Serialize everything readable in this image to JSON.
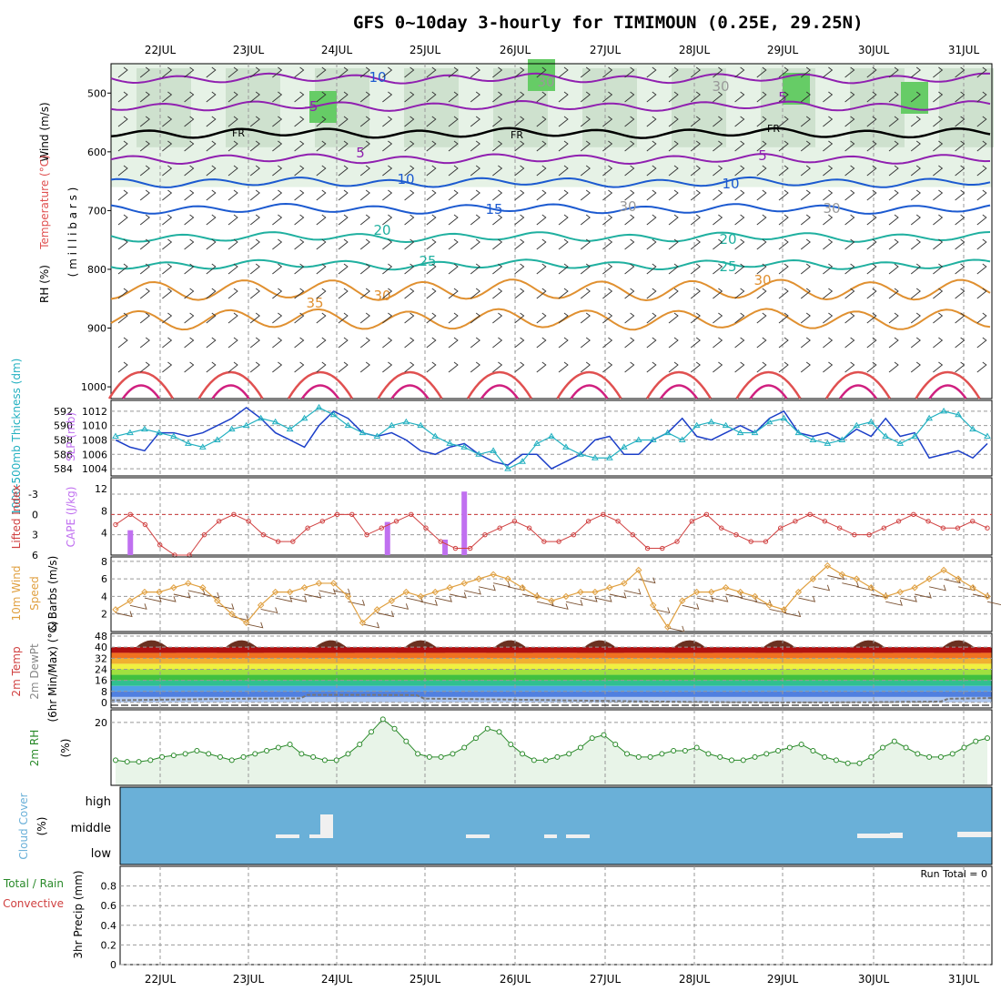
{
  "title": "GFS 0~10day 3-hourly for TIMIMOUN (0.25E, 29.25N)",
  "dates": [
    "22JUL",
    "23JUL",
    "24JUL",
    "25JUL",
    "26JUL",
    "27JUL",
    "28JUL",
    "29JUL",
    "30JUL",
    "31JUL"
  ],
  "colors": {
    "blue": "#1c3fc8",
    "cyan": "#22b0c0",
    "red": "#d04040",
    "purple": "#c070f0",
    "orange": "#e0a040",
    "green": "#2a8a2a",
    "cloud": "#6ab0d8",
    "grey": "#888888"
  },
  "chart_data": [
    {
      "type": "line",
      "name": "upper-air cross section",
      "ylabel_parts": [
        "Wind (m/s)",
        "Temperature (°C)",
        "RH (%)"
      ],
      "yunit": "( m i l l i b a r s )",
      "y_ticks": [
        "500",
        "600",
        "700",
        "800",
        "900",
        "1000"
      ],
      "ylim": [
        450,
        1020
      ],
      "y_inverted": true,
      "contour_labels": [
        "10",
        "-5",
        "5",
        "FR",
        "FR",
        "FR",
        "5",
        "5",
        "10",
        "10",
        "15",
        "20",
        "20",
        "25",
        "25",
        "30",
        "30",
        "35",
        "30",
        "30",
        "30",
        "30"
      ],
      "isotherms": [
        {
          "value": -10,
          "level": 475
        },
        {
          "value": -5,
          "level": 522
        },
        {
          "value": 0,
          "level": 568
        },
        {
          "value": 5,
          "level": 612
        },
        {
          "value": 10,
          "level": 652
        },
        {
          "value": 15,
          "level": 697
        },
        {
          "value": 20,
          "level": 745
        },
        {
          "value": 25,
          "level": 792
        },
        {
          "value": 30,
          "level": 835
        },
        {
          "value": 35,
          "level": 885
        }
      ]
    },
    {
      "type": "line",
      "ylabel_left": "1000-500mb Thickness (dm)",
      "ylabel_right": "SLP (mb)",
      "y_ticks_left": [
        "592",
        "590",
        "588",
        "586",
        "584"
      ],
      "y_ticks_right": [
        "1012",
        "1010",
        "1008",
        "1006",
        "1004"
      ],
      "ylim_slp": [
        1003,
        1013.5
      ],
      "slp": [
        1008,
        1007,
        1006.5,
        1009,
        1009,
        1008.5,
        1009,
        1010,
        1011,
        1012.5,
        1011,
        1009,
        1008,
        1007,
        1010,
        1012,
        1011,
        1009,
        1008.5,
        1009,
        1008,
        1006.5,
        1006,
        1007,
        1007.5,
        1006,
        1005,
        1004.5,
        1006,
        1006,
        1004,
        1005,
        1006,
        1008,
        1008.5,
        1006,
        1006,
        1008,
        1009,
        1011,
        1008.5,
        1008,
        1009,
        1010,
        1009,
        1011,
        1012,
        1009,
        1008.5,
        1009,
        1008,
        1009.5,
        1008.5,
        1011,
        1008.5,
        1009,
        1005.5,
        1006,
        1006.5,
        1005.5,
        1007.5
      ],
      "thickness_as_slp": [
        1008.5,
        1009,
        1009.5,
        1009,
        1008.5,
        1007.5,
        1007,
        1008,
        1009.5,
        1010,
        1011,
        1010.5,
        1009.5,
        1011,
        1012.5,
        1011.5,
        1010,
        1009,
        1008.5,
        1010,
        1010.5,
        1010,
        1008.5,
        1007.5,
        1007,
        1006,
        1006.5,
        1004,
        1005,
        1007.5,
        1008.5,
        1007,
        1006,
        1005.5,
        1005.5,
        1007,
        1008,
        1008,
        1009,
        1008,
        1010,
        1010.5,
        1010,
        1009,
        1009,
        1010.5,
        1011,
        1009,
        1008,
        1007.5,
        1008,
        1010,
        1010.5,
        1008.5,
        1007.5,
        1008.5,
        1011,
        1012,
        1011.5,
        1009.5,
        1008.5
      ]
    },
    {
      "type": "bar",
      "ylabel_left": "Lifted Index",
      "ylabel_right": "CAPE (J/kg)",
      "y_ticks_left": [
        "-3",
        "0",
        "3",
        "6"
      ],
      "y_ticks_right": [
        "12",
        "8",
        "4"
      ],
      "cape_bars": [
        {
          "x": 1.0,
          "value": 4.5
        },
        {
          "x": 18.4,
          "value": 6
        },
        {
          "x": 22.3,
          "value": 2.8
        },
        {
          "x": 23.6,
          "value": 11.5
        }
      ],
      "lifted_index": [
        1.5,
        0,
        1.5,
        4.5,
        6,
        6,
        3,
        1,
        0,
        1,
        3,
        4,
        4,
        2,
        1,
        0,
        0,
        3,
        2,
        1,
        0,
        2,
        4,
        5,
        5,
        3,
        2,
        1,
        2,
        4,
        4,
        3,
        1,
        0,
        1,
        3,
        5,
        5,
        4,
        1,
        0,
        2,
        3,
        4,
        4,
        2,
        1,
        0,
        1,
        2,
        3,
        3,
        2,
        1,
        0,
        1,
        2,
        2,
        1,
        2
      ]
    },
    {
      "type": "line",
      "ylabel_left": "10m Wind",
      "ylabel_mid": "Speed",
      "ylabel_right": "& Barbs (m/s)",
      "y_ticks": [
        "8",
        "6",
        "4",
        "2"
      ],
      "ylim": [
        0,
        8.5
      ],
      "speed": [
        2.5,
        3.5,
        4.5,
        4.5,
        5,
        5.5,
        5,
        3.5,
        2,
        1,
        3,
        4.5,
        4.5,
        5,
        5.5,
        5.5,
        4,
        1,
        2.5,
        3.5,
        4.5,
        4,
        4.5,
        5,
        5.5,
        6,
        6.5,
        6,
        5,
        4,
        3.5,
        4,
        4.5,
        4.5,
        5,
        5.5,
        7,
        3,
        0.5,
        3.5,
        4.5,
        4.5,
        5,
        4.5,
        4,
        3,
        2.5,
        4.5,
        6,
        7.5,
        6.5,
        6,
        5,
        4,
        4.5,
        5,
        6,
        7,
        6,
        5,
        4
      ]
    },
    {
      "type": "area",
      "ylabel_left": "2m Temp",
      "ylabel_mid": "2m DewPt",
      "ylabel_right": "(6hr Min/Max) (°C)",
      "y_ticks": [
        "48",
        "40",
        "32",
        "24",
        "16",
        "8",
        "0"
      ],
      "ylim": [
        -4,
        50
      ],
      "temp_min": 36,
      "temp_peak": 45
    },
    {
      "type": "line",
      "ylabel_left": "2m RH",
      "ylabel_right": "(%)",
      "y_ticks": [
        "20"
      ],
      "ylim": [
        0,
        24
      ],
      "rh": [
        8,
        7.5,
        7.5,
        8,
        9,
        9.5,
        10,
        11,
        10,
        9,
        8,
        9,
        10,
        11,
        12,
        13,
        10,
        9,
        8,
        8,
        10,
        13,
        17,
        21,
        18,
        14,
        10,
        9,
        9,
        10,
        12,
        15,
        18,
        17,
        13,
        10,
        8,
        8,
        9,
        10,
        12,
        15,
        16,
        13,
        10,
        9,
        9,
        10,
        11,
        11,
        12,
        10,
        9,
        8,
        8,
        9,
        10,
        11,
        12,
        13,
        11,
        9,
        8,
        7,
        7,
        9,
        12,
        14,
        12,
        10,
        9,
        9,
        10,
        12,
        14,
        15
      ]
    },
    {
      "type": "bar",
      "ylabel_left": "Cloud Cover",
      "ylabel_right": "(%)",
      "y_ticks": [
        "high",
        "middle",
        "low"
      ],
      "notes": "sky blue background with small white mid-level patches"
    },
    {
      "type": "bar",
      "ylabel_left": "Total / Rain",
      "ylabel_mid": "Convective",
      "ylabel_right": "3hr Precip (mm)",
      "y_ticks": [
        "0.8",
        "0.6",
        "0.4",
        "0.2",
        "0"
      ],
      "ylim": [
        0,
        1
      ],
      "run_total_label": "Run Total = 0",
      "precip": []
    }
  ]
}
